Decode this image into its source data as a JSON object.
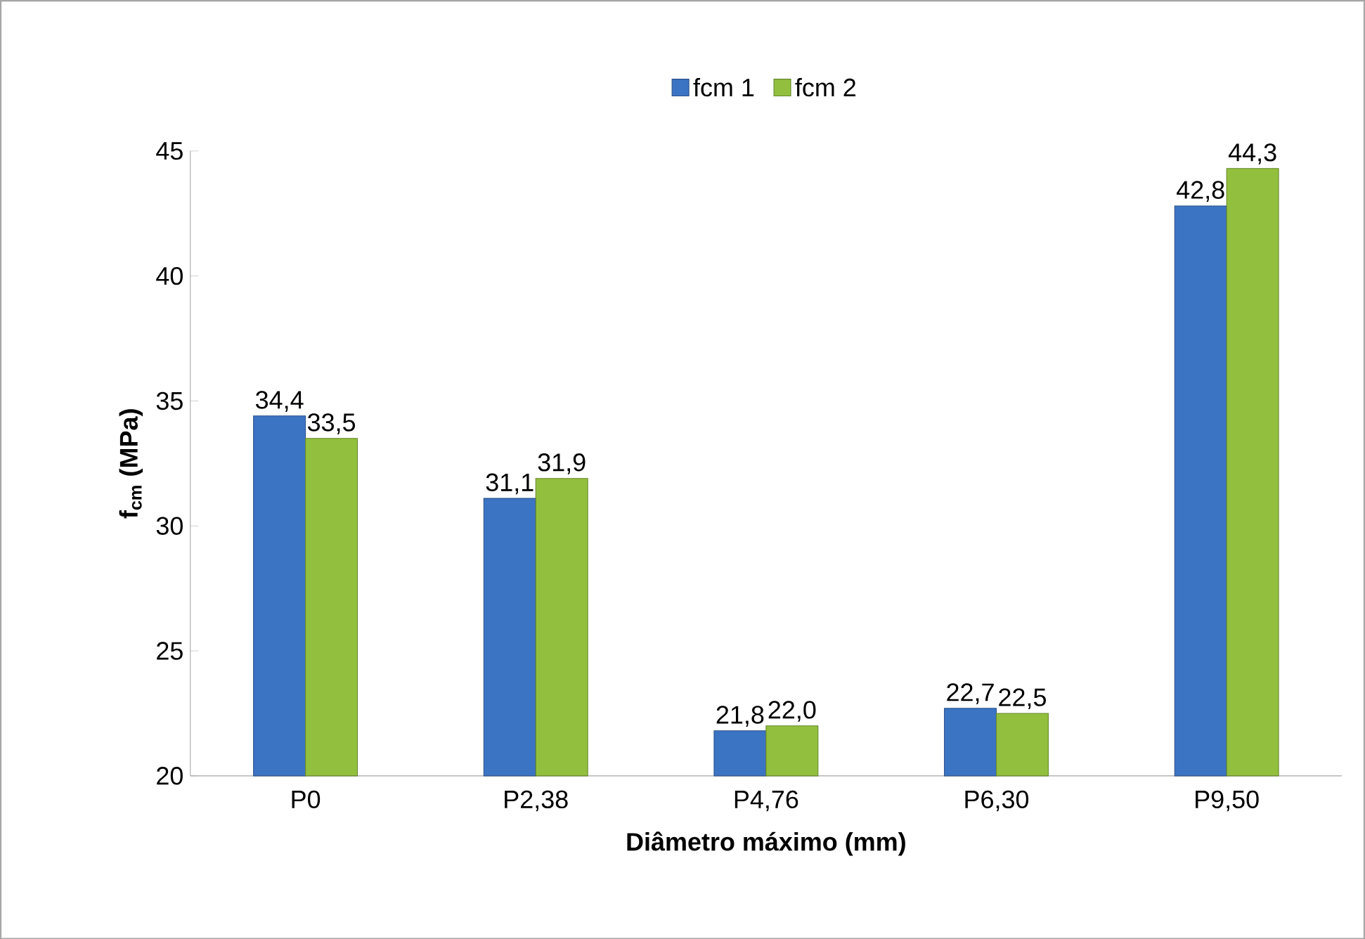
{
  "chart_data": {
    "type": "bar",
    "xlabel": "Diâmetro máximo (mm)",
    "ylabel": "f$_{cm}$ (MPa)",
    "categories": [
      "P0",
      "P2,38",
      "P4,76",
      "P6,30",
      "P9,50"
    ],
    "series": [
      {
        "name": "fcm 1",
        "color": "#3c74c4",
        "values": [
          34.4,
          31.1,
          21.8,
          22.7,
          42.8
        ],
        "value_labels": [
          "34,4",
          "31,1",
          "21,8",
          "22,7",
          "42,8"
        ]
      },
      {
        "name": "fcm 2",
        "color": "#92c03e",
        "values": [
          33.5,
          31.9,
          22.0,
          22.5,
          44.3
        ],
        "value_labels": [
          "33,5",
          "31,9",
          "22,0",
          "22,5",
          "44,3"
        ]
      }
    ],
    "ylim": [
      20,
      45
    ],
    "yticks": [
      20,
      25,
      30,
      35,
      40,
      45
    ],
    "grid": false,
    "legend": "top"
  }
}
